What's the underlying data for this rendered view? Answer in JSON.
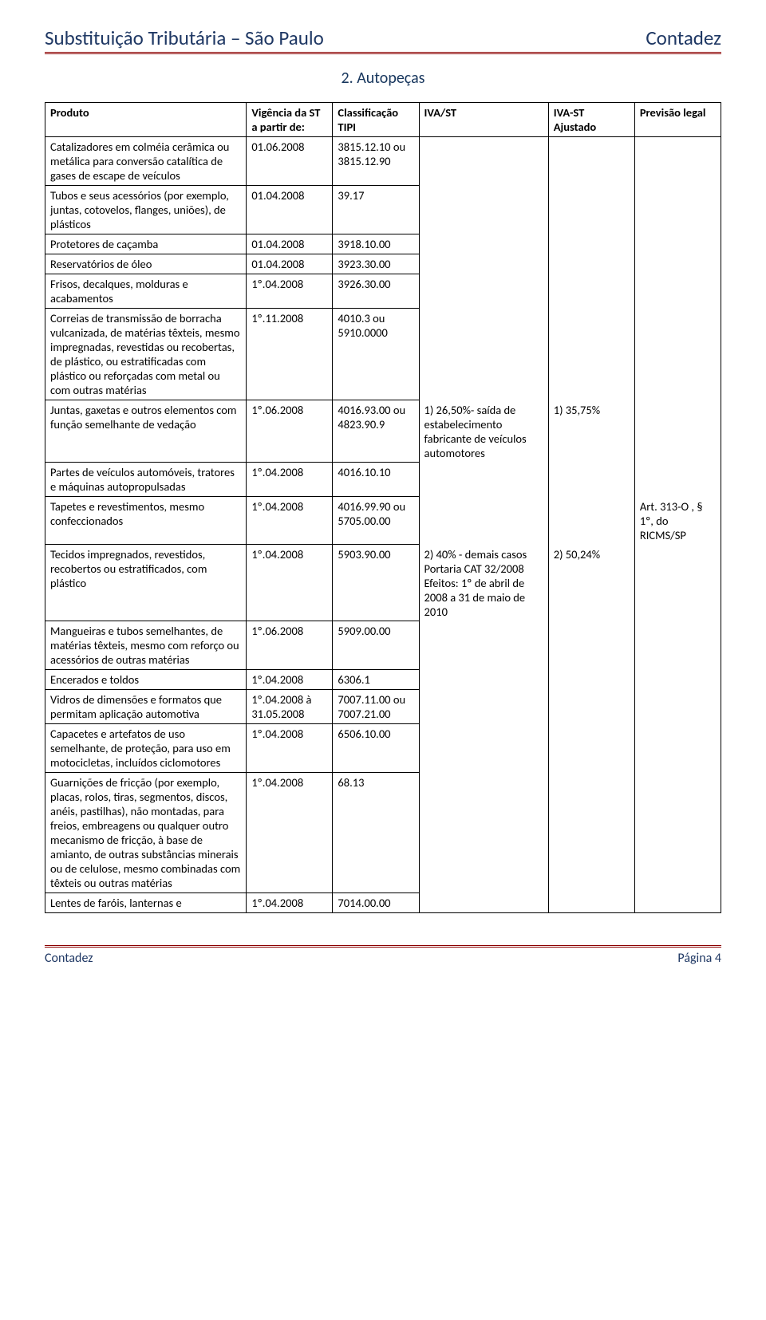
{
  "colors": {
    "header_text": "#1f3864",
    "rule": "#8b0000",
    "section_title": "#17365d",
    "border": "#000000",
    "background": "#ffffff"
  },
  "typography": {
    "body_family": "Calibri, Arial, sans-serif",
    "body_size_pt": 11,
    "header_size_pt": 19,
    "section_title_size_pt": 15
  },
  "header": {
    "left": "Substituição Tributária – São Paulo",
    "right": "Contadez"
  },
  "section": {
    "title": "2. Autopeças"
  },
  "table": {
    "type": "table",
    "columns": [
      {
        "key": "produto",
        "label": "Produto",
        "width_pct": 28
      },
      {
        "key": "vigencia",
        "label": "Vigência da ST a partir de:",
        "width_pct": 12
      },
      {
        "key": "tipi",
        "label": "Classificação TIPI",
        "width_pct": 12
      },
      {
        "key": "iva_st",
        "label": "IVA/ST",
        "width_pct": 18
      },
      {
        "key": "iva_st_aj",
        "label": "IVA-ST Ajustado",
        "width_pct": 12
      },
      {
        "key": "prev_legal",
        "label": "Previsão legal",
        "width_pct": 12
      }
    ],
    "merged": {
      "iva_st_block1": "1) 26,50%- saída de estabelecimento fabricante de veículos automotores",
      "iva_st_block2": "2) 40% - demais casos\nPortaria CAT 32/2008\nEfeitos: 1º de abril de 2008 a 31 de maio de 2010",
      "iva_st_aj_1": "1) 35,75%",
      "iva_st_aj_2": "2) 50,24%",
      "prev_legal": "Art. 313-O , § 1º, do RICMS/SP"
    },
    "rows": [
      {
        "produto": "Catalizadores em colméia cerâmica ou metálica para conversão catalítica de gases de escape de veículos",
        "vigencia": "01.06.2008",
        "tipi": "3815.12.10 ou 3815.12.90"
      },
      {
        "produto": "Tubos e seus acessórios (por exemplo, juntas, cotovelos, flanges, uniões), de plásticos",
        "vigencia": "01.04.2008",
        "tipi": "39.17"
      },
      {
        "produto": "Protetores de caçamba",
        "vigencia": "01.04.2008",
        "tipi": "3918.10.00"
      },
      {
        "produto": "Reservatórios de óleo",
        "vigencia": "01.04.2008",
        "tipi": "3923.30.00"
      },
      {
        "produto": "Frisos, decalques, molduras e acabamentos",
        "vigencia": "1º.04.2008",
        "tipi": "3926.30.00"
      },
      {
        "produto": "Correias de transmissão de borracha vulcanizada, de matérias têxteis, mesmo impregnadas, revestidas ou recobertas, de plástico, ou estratificadas com plástico ou reforçadas com metal ou com outras matérias",
        "vigencia": "1º.11.2008",
        "tipi": "4010.3 ou 5910.0000"
      },
      {
        "produto": "Juntas, gaxetas e outros elementos com função semelhante de vedação",
        "vigencia": "1º.06.2008",
        "tipi": "4016.93.00 ou 4823.90.9"
      },
      {
        "produto": "Partes de veículos automóveis, tratores e máquinas autopropulsadas",
        "vigencia": "1º.04.2008",
        "tipi": "4016.10.10"
      },
      {
        "produto": "Tapetes e revestimentos, mesmo confeccionados",
        "vigencia": "1º.04.2008",
        "tipi": "4016.99.90 ou 5705.00.00"
      },
      {
        "produto": "Tecidos impregnados, revestidos, recobertos ou estratificados, com plástico",
        "vigencia": "1º.04.2008",
        "tipi": "5903.90.00"
      },
      {
        "produto": "Mangueiras e tubos semelhantes, de matérias têxteis, mesmo com reforço ou acessórios de outras matérias",
        "vigencia": "1º.06.2008",
        "tipi": "5909.00.00"
      },
      {
        "produto": "Encerados e toldos",
        "vigencia": "1º.04.2008",
        "tipi": "6306.1"
      },
      {
        "produto": "Vidros de dimensões e formatos que permitam aplicação automotiva",
        "vigencia": "1º.04.2008 à 31.05.2008",
        "tipi": "7007.11.00 ou 7007.21.00"
      },
      {
        "produto": "Capacetes e artefatos de uso semelhante, de proteção, para uso em motocicletas, incluídos ciclomotores",
        "vigencia": "1º.04.2008",
        "tipi": "6506.10.00"
      },
      {
        "produto": "Guarnições de fricção (por exemplo, placas, rolos, tiras, segmentos, discos, anéis, pastilhas), não montadas, para freios, embreagens ou qualquer outro mecanismo de fricção, à base de amianto, de outras substâncias minerais ou de celulose, mesmo combinadas com têxteis ou outras matérias",
        "vigencia": "1º.04.2008",
        "tipi": "68.13"
      },
      {
        "produto": "Lentes de faróis, lanternas e",
        "vigencia": "1º.04.2008",
        "tipi": "7014.00.00"
      }
    ]
  },
  "footer": {
    "left": "Contadez",
    "right": "Página 4"
  }
}
